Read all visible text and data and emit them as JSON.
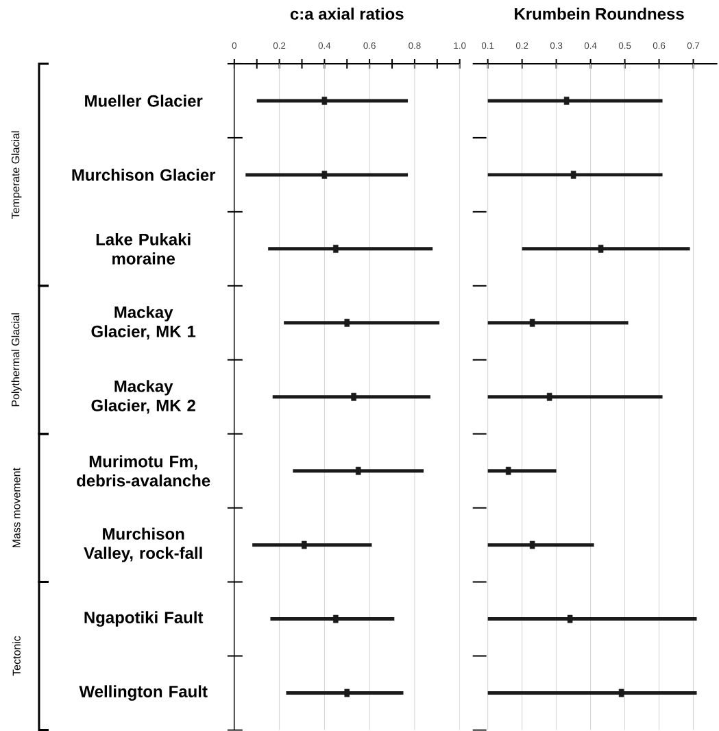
{
  "chart_data": [
    {
      "type": "bar",
      "orientation": "horizontal",
      "title": "c:a axial ratios",
      "categories": [
        "Mueller Glacier",
        "Murchison Glacier",
        "Lake Pukaki moraine",
        "Mackay Glacier, MK 1",
        "Mackay Glacier, MK 2",
        "Murimotu Fm, debris-avalanche",
        "Murchison Valley, rock-fall",
        "Ngapotiki Fault",
        "Wellington Fault"
      ],
      "series": [
        {
          "type": "bar",
          "color": "#1a1a1a",
          "base": [
            0.1,
            0.05,
            0.15,
            0.22,
            0.17,
            0.26,
            0.08,
            0.16,
            0.23
          ],
          "values": [
            0.67,
            0.72,
            0.73,
            0.69,
            0.7,
            0.58,
            0.53,
            0.55,
            0.52
          ]
        },
        {
          "type": "scatter",
          "color": "#1a1a1a",
          "x": [
            "Mueller Glacier",
            "Murchison Glacier",
            "Lake Pukaki moraine",
            "Mackay Glacier, MK 1",
            "Mackay Glacier, MK 2",
            "Murimotu Fm, debris-avalanche",
            "Murchison Valley, rock-fall",
            "Ngapotiki Fault",
            "Wellington Fault"
          ],
          "values": [
            0.4,
            0.4,
            0.45,
            0.5,
            0.53,
            0.55,
            0.31,
            0.45,
            0.5
          ]
        }
      ],
      "xlim": [
        0,
        1.0
      ],
      "xticks": [
        0,
        {
          "value": 0.1,
          "label": null
        },
        0.2,
        {
          "value": 0.3,
          "label": null
        },
        0.4,
        {
          "value": 0.5,
          "label": null
        },
        0.6,
        {
          "value": 0.7,
          "label": null
        },
        0.8,
        {
          "value": 0.9,
          "label": null
        },
        {
          "value": 1.0,
          "label": "1.0"
        }
      ],
      "grid": "x",
      "annotations": [
        "Temperate Glacial",
        "Polythermal Glacial",
        "Mass movement",
        "Tectonic"
      ]
    },
    {
      "type": "bar",
      "orientation": "horizontal",
      "title": "Krumbein Roundness",
      "tick_labels": "x",
      "categories": [
        "Mueller Glacier",
        "Murchison Glacier",
        "Lake Pukaki moraine",
        "Mackay Glacier, MK 1",
        "Mackay Glacier, MK 2",
        "Murimotu Fm, debris-avalanche",
        "Murchison Valley, rock-fall",
        "Ngapotiki Fault",
        "Wellington Fault"
      ],
      "series": [
        {
          "type": "bar",
          "color": "#1a1a1a",
          "base": [
            0.1,
            0.1,
            0.2,
            0.1,
            0.1,
            0.1,
            0.1,
            0.1,
            0.1
          ],
          "values": [
            0.51,
            0.51,
            0.49,
            0.41,
            0.51,
            0.2,
            0.31,
            0.61,
            0.61
          ]
        },
        {
          "type": "scatter",
          "color": "#1a1a1a",
          "x": [
            "Mueller Glacier",
            "Murchison Glacier",
            "Lake Pukaki moraine",
            "Mackay Glacier, MK 1",
            "Mackay Glacier, MK 2",
            "Murimotu Fm, debris-avalanche",
            "Murchison Valley, rock-fall",
            "Ngapotiki Fault",
            "Wellington Fault"
          ],
          "values": [
            0.33,
            0.35,
            0.43,
            0.23,
            0.28,
            0.16,
            0.23,
            0.34,
            0.49
          ]
        }
      ],
      "xlim": [
        0.08,
        0.77
      ],
      "xticks": [
        0.1,
        0.2,
        0.3,
        0.4,
        0.5,
        0.6,
        0.7
      ],
      "grid": "x"
    }
  ]
}
